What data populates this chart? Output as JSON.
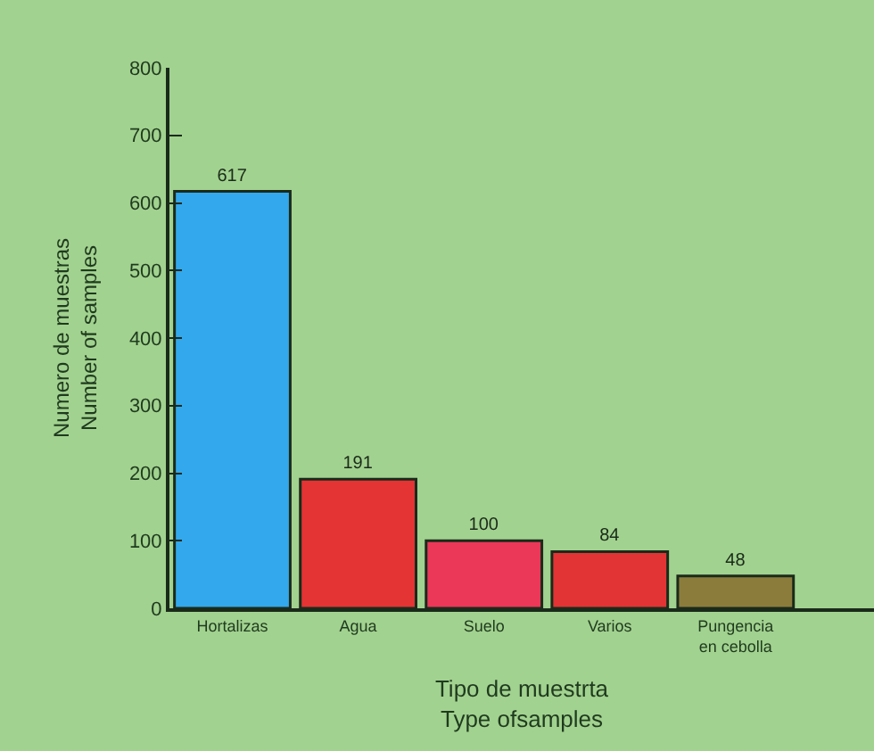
{
  "chart_data": {
    "type": "bar",
    "xlabel": "Tipo de muestrta\nType ofsamples",
    "ylabel": "Numero de muestras\nNumber of samples",
    "categories": [
      "Hortalizas",
      "Agua",
      "Suelo",
      "Varios",
      "Pungencia\nen cebolla"
    ],
    "values": [
      617,
      191,
      100,
      84,
      48
    ],
    "colors": [
      "#33a8ec",
      "#e43434",
      "#ec3858",
      "#e23434",
      "#8c7c3c"
    ],
    "ylim": [
      0,
      800
    ],
    "yticks": [
      0,
      100,
      200,
      300,
      400,
      500,
      600,
      700,
      800
    ],
    "data_labels": true,
    "grid": false,
    "legend": false
  }
}
